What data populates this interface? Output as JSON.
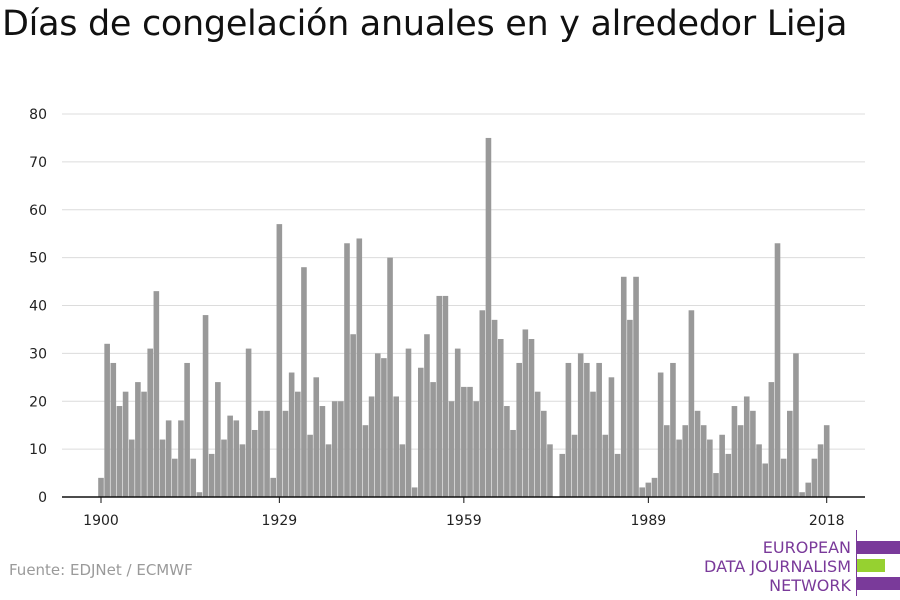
{
  "title": "Días de congelación anuales en y alrededor Lieja",
  "source": "Fuente: EDJNet / ECMWF",
  "logo": {
    "lines": [
      "EUROPEAN",
      "DATA JOURNALISM",
      "NETWORK"
    ],
    "colors": {
      "purple": "#7a3a9a",
      "green": "#96d130"
    }
  },
  "chart_data": {
    "type": "bar",
    "title": "Días de congelación anuales en y alrededor Lieja",
    "xlabel": "",
    "ylabel": "",
    "x_start": 1900,
    "x_end": 2018,
    "x_ticks": [
      1900,
      1929,
      1959,
      1989,
      2018
    ],
    "y_ticks": [
      0,
      10,
      20,
      30,
      40,
      50,
      60,
      70,
      80
    ],
    "ylim": [
      0,
      80
    ],
    "grid": true,
    "bar_color": "#999999",
    "values": [
      4,
      32,
      28,
      19,
      22,
      12,
      24,
      22,
      31,
      43,
      12,
      16,
      8,
      16,
      28,
      8,
      1,
      38,
      9,
      24,
      12,
      17,
      16,
      11,
      31,
      14,
      18,
      18,
      4,
      57,
      18,
      26,
      22,
      48,
      13,
      25,
      19,
      11,
      20,
      20,
      53,
      34,
      54,
      15,
      21,
      30,
      29,
      50,
      21,
      11,
      31,
      2,
      27,
      34,
      24,
      42,
      42,
      20,
      31,
      23,
      23,
      20,
      39,
      75,
      37,
      33,
      19,
      14,
      28,
      35,
      33,
      22,
      18,
      11,
      0,
      9,
      28,
      13,
      30,
      28,
      22,
      28,
      13,
      25,
      9,
      46,
      37,
      46,
      2,
      3,
      4,
      26,
      15,
      28,
      12,
      15,
      39,
      18,
      15,
      12,
      5,
      13,
      9,
      19,
      15,
      21,
      18,
      11,
      7,
      24,
      53,
      8,
      18,
      30,
      1,
      3,
      8,
      11,
      15
    ]
  }
}
